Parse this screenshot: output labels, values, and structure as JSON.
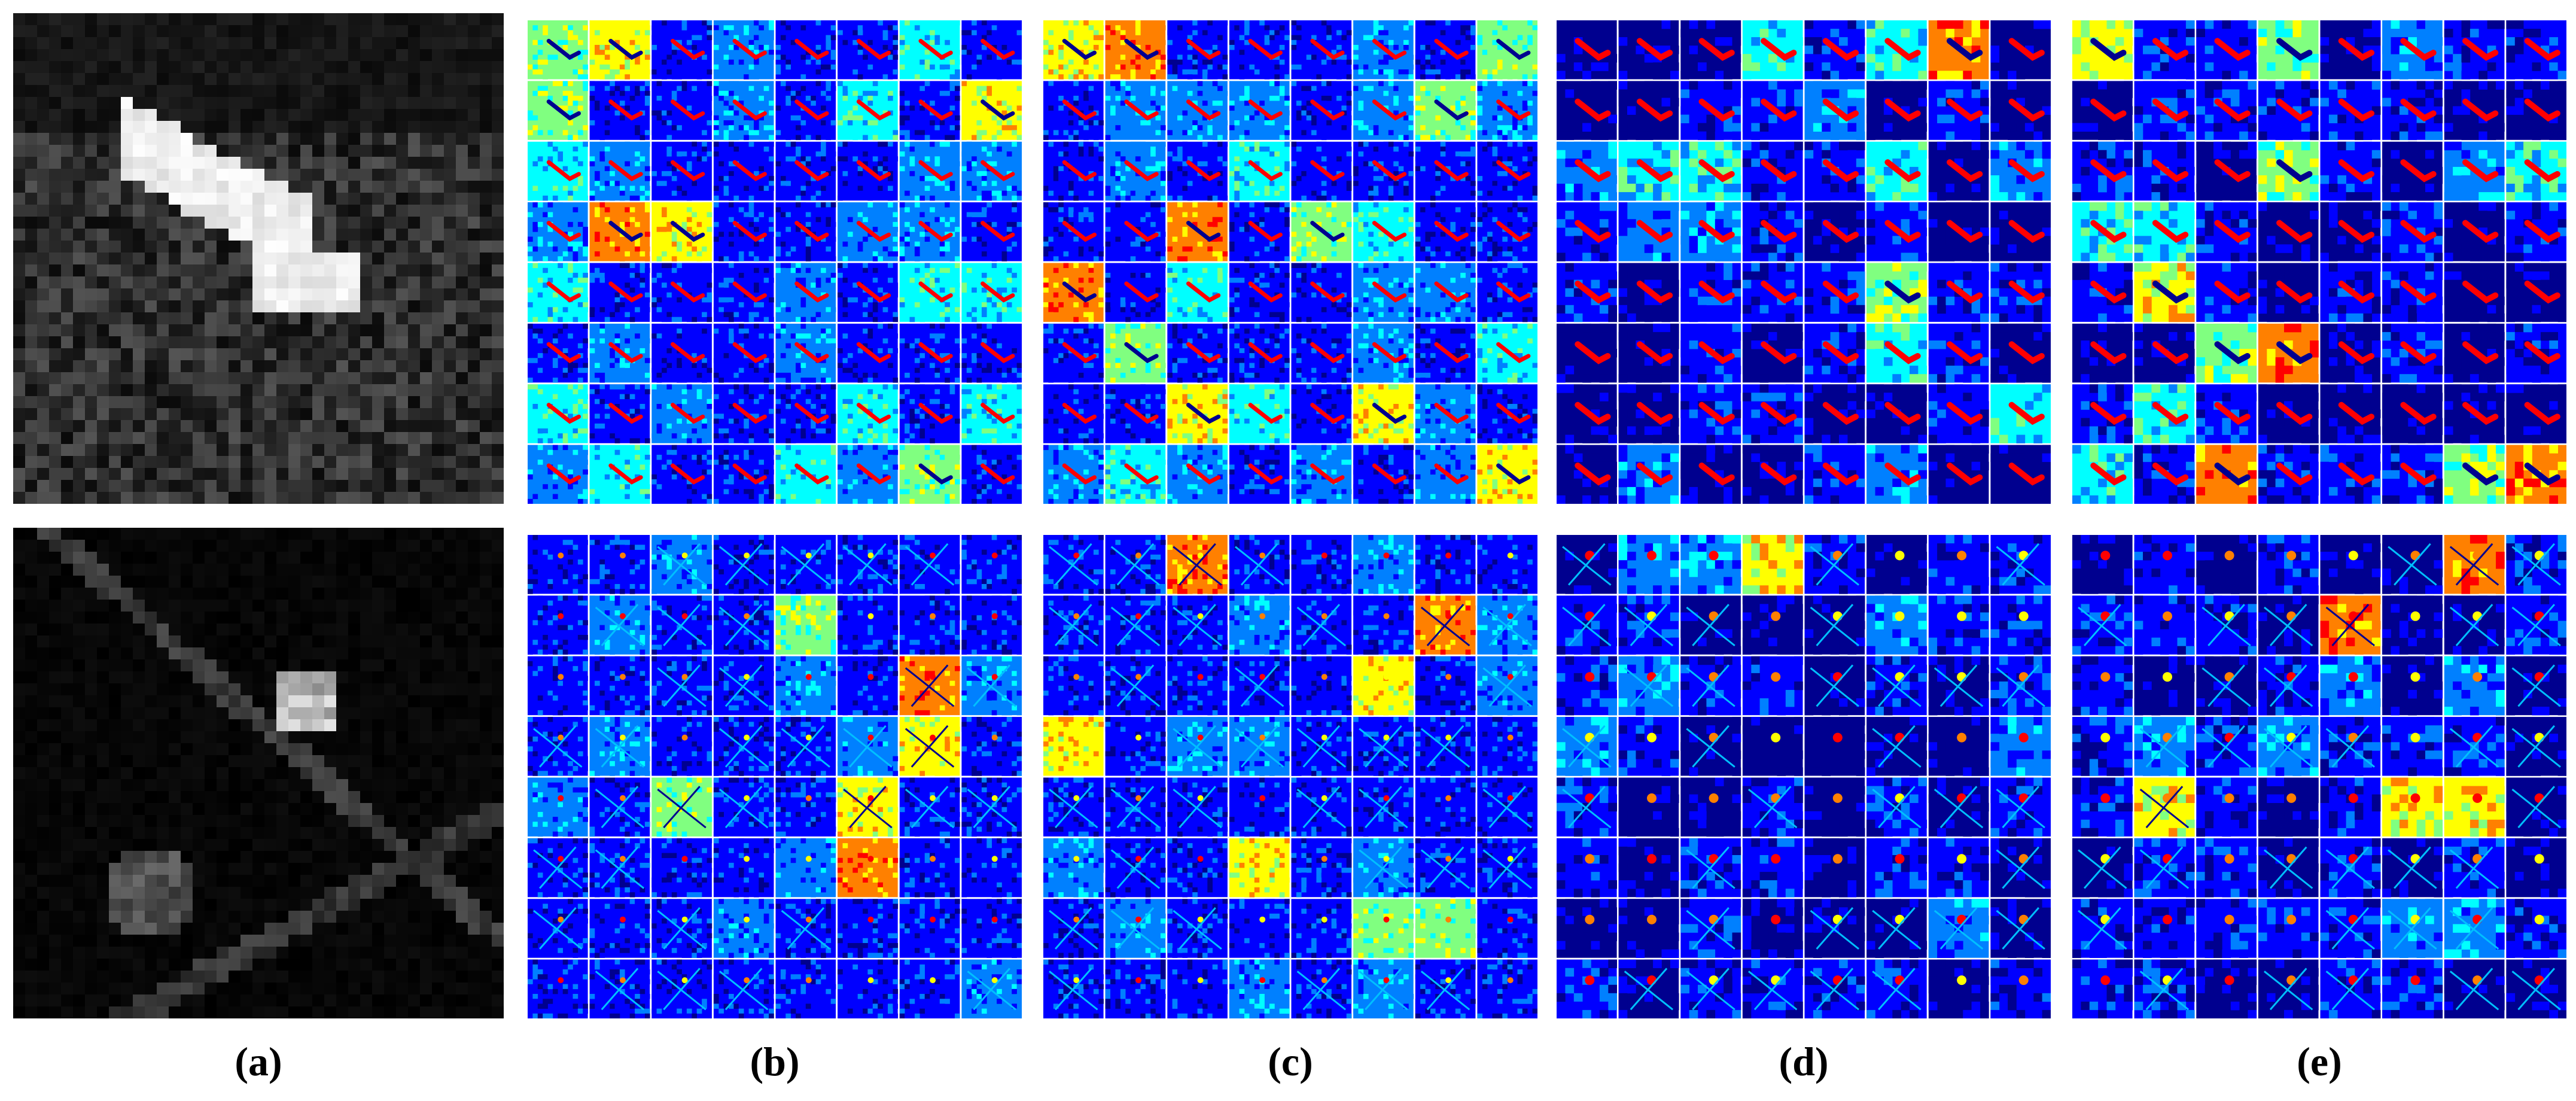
{
  "figure": {
    "rows": [
      {
        "name": "top-row",
        "input_description": "bright L-shaped target on textured background",
        "colors": {
          "input_bg": "#1b1b1b",
          "input_target": "#f2f2f2"
        }
      },
      {
        "name": "bottom-row",
        "input_description": "faint cross-shaped target on dark background",
        "colors": {
          "input_bg": "#050505",
          "input_target": "#8c8c8c"
        }
      }
    ],
    "feature_grid": {
      "rows": 8,
      "cols": 8
    },
    "colormap": [
      "#00008f",
      "#0000ff",
      "#0080ff",
      "#00ffff",
      "#80ff80",
      "#ffff00",
      "#ff8000",
      "#ff0000",
      "#800000"
    ],
    "captions": {
      "a": "(a)",
      "b": "(b)",
      "c": "(c)",
      "d": "(d)",
      "e": "(e)"
    }
  }
}
